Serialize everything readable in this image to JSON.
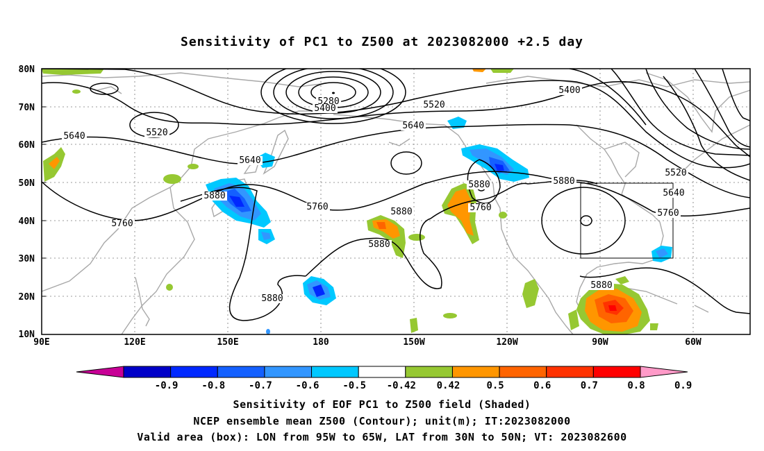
{
  "title": "Sensitivity of PC1 to Z500 at 2023082000 +2.5 day",
  "map": {
    "lat_labels": [
      "80N",
      "70N",
      "60N",
      "50N",
      "40N",
      "30N",
      "20N",
      "10N"
    ],
    "lon_labels": [
      "90E",
      "120E",
      "150E",
      "180",
      "150W",
      "120W",
      "90W",
      "60W"
    ],
    "valid_box": {
      "lon_min": "95W",
      "lon_max": "65W",
      "lat_min": "30N",
      "lat_max": "50N"
    },
    "contour_labels": [
      "5280",
      "5400",
      "5400",
      "5520",
      "5520",
      "5520",
      "5640",
      "5640",
      "5640",
      "5640",
      "5760",
      "5760",
      "5760",
      "5760",
      "5880",
      "5880",
      "5880",
      "5880",
      "5880",
      "5880",
      "5880"
    ]
  },
  "colorbar": {
    "labels": [
      "-0.9",
      "-0.8",
      "-0.7",
      "-0.6",
      "-0.5",
      "-0.42",
      "0.42",
      "0.5",
      "0.6",
      "0.7",
      "0.8",
      "0.9"
    ],
    "colors": [
      "#c80096",
      "#0000c8",
      "#0028ff",
      "#1460ff",
      "#3296ff",
      "#00c8ff",
      "#ffffff",
      "#96c832",
      "#ff9600",
      "#ff6400",
      "#ff3200",
      "#ff0000",
      "#ff9ac8"
    ]
  },
  "captions": {
    "line1": "Sensitivity of EOF PC1 to Z500 field (Shaded)",
    "line2": "NCEP ensemble mean Z500 (Contour); unit(m); IT:2023082000",
    "line3": "Valid area (box): LON from 95W to 65W, LAT from 30N to 50N; VT: 2023082600"
  }
}
